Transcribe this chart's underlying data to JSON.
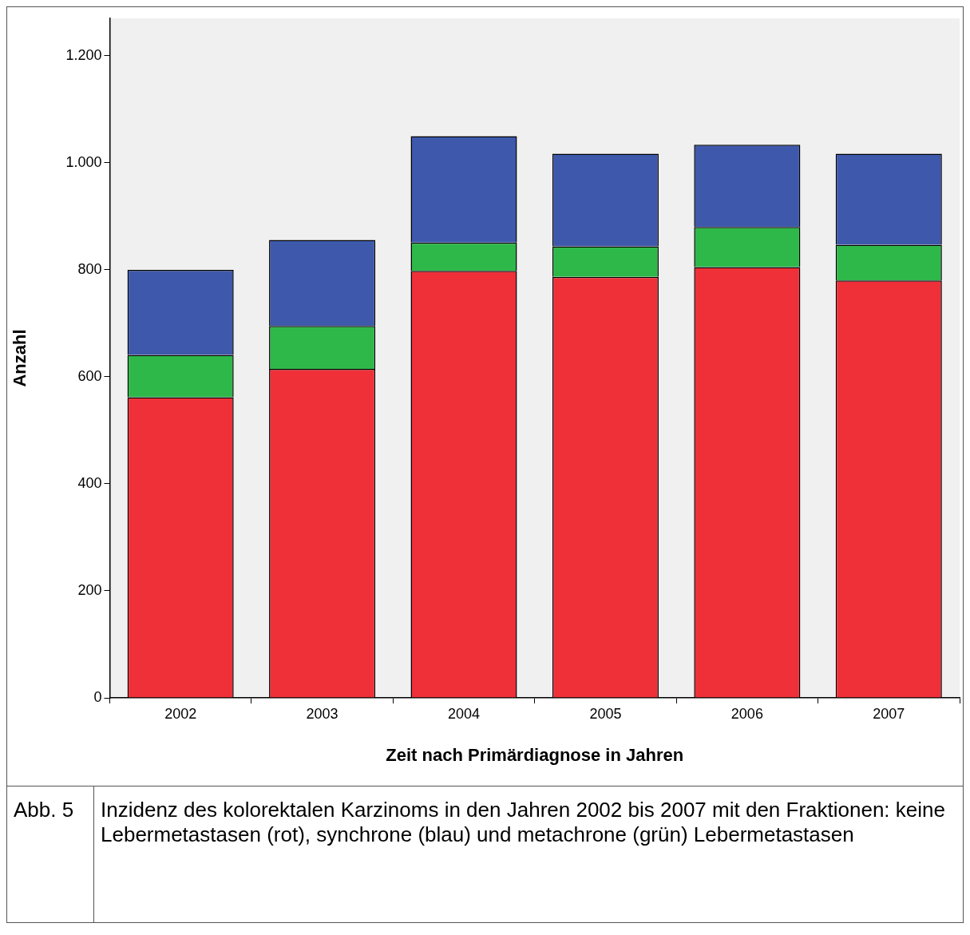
{
  "chart_data": {
    "type": "bar",
    "stacked": true,
    "xlabel": "Zeit nach Primärdiagnose in Jahren",
    "ylabel": "Anzahl",
    "categories": [
      "2002",
      "2003",
      "2004",
      "2005",
      "2006",
      "2007"
    ],
    "series": [
      {
        "color": "#ef3039",
        "values": [
          562,
          615,
          798,
          787,
          805,
          780
        ]
      },
      {
        "color": "#2fb84a",
        "values": [
          79,
          80,
          53,
          57,
          75,
          67
        ]
      },
      {
        "color": "#3e59ac",
        "values": [
          159,
          161,
          199,
          173,
          154,
          170
        ]
      }
    ],
    "ylim": [
      0,
      1270
    ],
    "yticks": [
      0,
      200,
      400,
      600,
      800,
      {
        "value": 1000,
        "label": "1.000"
      },
      {
        "value": 1200,
        "label": "1.200"
      }
    ],
    "grid": false,
    "legend": false,
    "annotations": [
      "Abb. 5",
      "Inzidenz des kolorektalen Karzinoms in den Jahren 2002 bis 2007 mit den Fraktionen: keine Lebermetastasen (rot), synchrone (blau) und metachrone (grün) Lebermetastasen"
    ]
  }
}
